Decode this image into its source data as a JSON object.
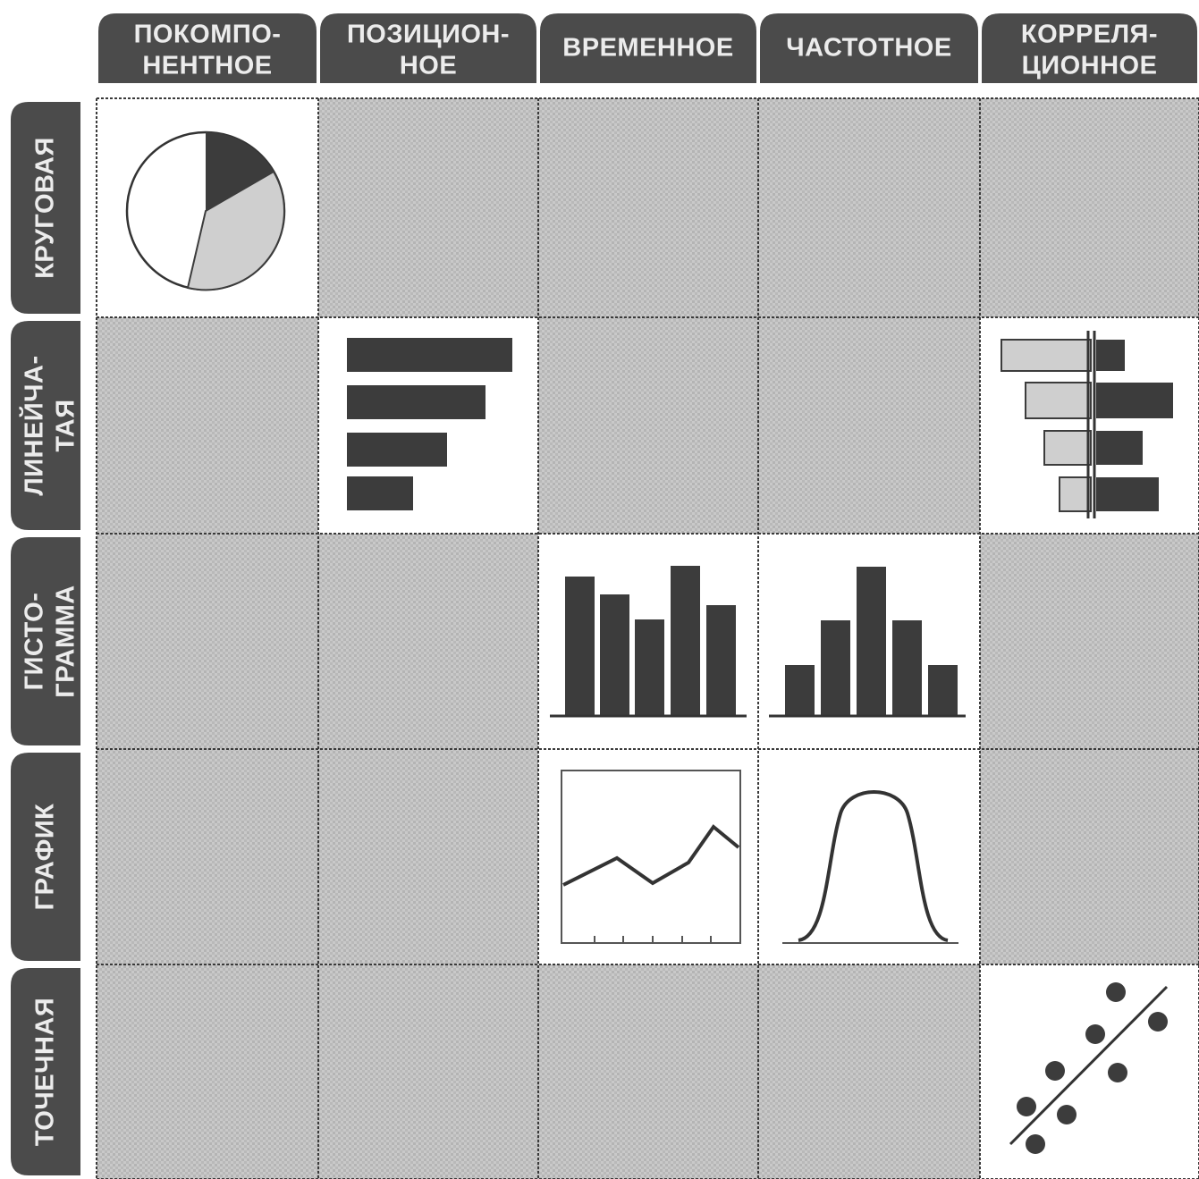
{
  "columns": [
    [
      "ПОКОМПО-",
      "НЕНТНОЕ"
    ],
    [
      "ПОЗИЦИОН-",
      "НОЕ"
    ],
    [
      "ВРЕМЕННОЕ"
    ],
    [
      "ЧАСТОТНОЕ"
    ],
    [
      "КОРРЕЛЯ-",
      "ЦИОННОЕ"
    ]
  ],
  "rows": [
    [
      "КРУГОВАЯ"
    ],
    [
      "ЛИНЕЙЧА-",
      "ТАЯ"
    ],
    [
      "ГИСТО-",
      "ГРАММА"
    ],
    [
      "ГРАФИК"
    ],
    [
      "ТОЧЕЧНАЯ"
    ]
  ]
}
